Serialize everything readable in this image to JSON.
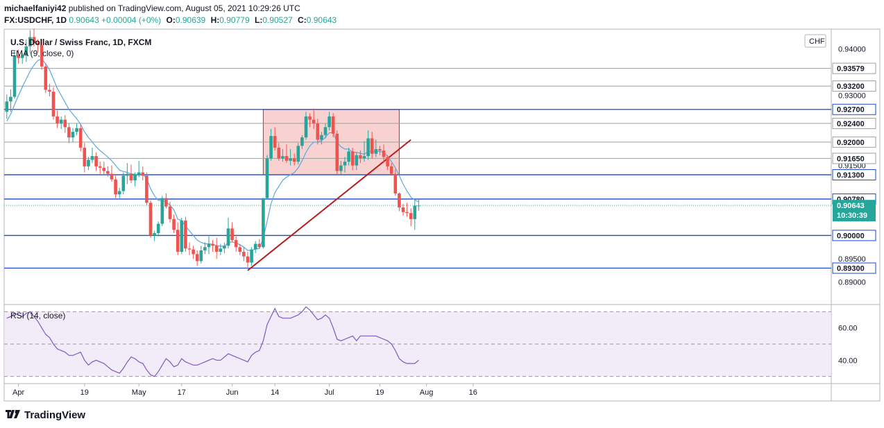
{
  "header": {
    "line1_user": "michaelfaniyi42",
    "line1_text": "published on TradingView.com, August 05, 2021 10:29:26 UTC",
    "symbol": "FX:USDCHF, 1D",
    "price": "0.90643",
    "change": "+0.00004 (+0%)",
    "o_label": "O:",
    "o_value": "0.90639",
    "h_label": "H:",
    "h_value": "0.90779",
    "l_label": "L:",
    "l_value": "0.90527",
    "c_label": "C:",
    "c_value": "0.90643"
  },
  "legend": {
    "title": "U.S. Dollar / Swiss Franc, 1D, FXCM",
    "ema": "EMA (9, close, 0)",
    "rsi": "RSI (14, close)",
    "currency": "CHF"
  },
  "footer": {
    "brand": "TradingView"
  },
  "colors": {
    "up": "#26a69a",
    "down": "#ef5350",
    "ema": "#5aa7e0",
    "level_blue": "#1848cc",
    "level_gray": "#9e9e9e",
    "trendline": "#b71c1c",
    "box_fill": "#ef9a9a",
    "box_stroke": "#c62828",
    "rsi_line": "#7e57c2",
    "rsi_band": "#ede7f6"
  },
  "chart_data": {
    "type": "candlestick",
    "price_axis": {
      "range": [
        0.8855,
        0.9442
      ],
      "ticks": [
        "0.94000",
        "0.93000",
        "0.91500",
        "0.90000",
        "0.89500",
        "0.89000"
      ],
      "tick_values": [
        0.94,
        0.93,
        0.915,
        0.9,
        0.895,
        0.89
      ],
      "labeled_levels": [
        {
          "label": "0.93579",
          "value": 0.93579,
          "style": "gray"
        },
        {
          "label": "0.93200",
          "value": 0.932,
          "style": "gray"
        },
        {
          "label": "0.92700",
          "value": 0.927,
          "style": "blue"
        },
        {
          "label": "0.92400",
          "value": 0.924,
          "style": "gray"
        },
        {
          "label": "0.92000",
          "value": 0.92,
          "style": "gray"
        },
        {
          "label": "0.91650",
          "value": 0.9165,
          "style": "gray"
        },
        {
          "label": "0.91300",
          "value": 0.913,
          "style": "blue"
        },
        {
          "label": "0.90780",
          "value": 0.9078,
          "style": "blue"
        },
        {
          "label": "0.90000",
          "value": 0.9,
          "style": "blue"
        },
        {
          "label": "0.89300",
          "value": 0.893,
          "style": "blue"
        }
      ],
      "current": {
        "label": "0.90643",
        "value": 0.90643,
        "countdown": "10:30:39"
      }
    },
    "time_axis": {
      "labels": [
        "Apr",
        "19",
        "May",
        "17",
        "Jun",
        "14",
        "Jul",
        "19",
        "Aug",
        "16"
      ],
      "label_index": [
        3,
        20,
        34,
        45,
        58,
        69,
        83,
        96,
        108,
        120
      ]
    },
    "candles_ohlc": [
      [
        0.9265,
        0.9302,
        0.925,
        0.9287
      ],
      [
        0.9287,
        0.9313,
        0.9265,
        0.9297
      ],
      [
        0.9297,
        0.9395,
        0.9293,
        0.9385
      ],
      [
        0.9385,
        0.9398,
        0.9368,
        0.938
      ],
      [
        0.938,
        0.939,
        0.9368,
        0.9385
      ],
      [
        0.9385,
        0.942,
        0.9372,
        0.9405
      ],
      [
        0.9405,
        0.944,
        0.939,
        0.9425
      ],
      [
        0.9425,
        0.9443,
        0.9405,
        0.9412
      ],
      [
        0.9412,
        0.942,
        0.9392,
        0.9408
      ],
      [
        0.9408,
        0.942,
        0.9355,
        0.9362
      ],
      [
        0.9362,
        0.9368,
        0.9305,
        0.9312
      ],
      [
        0.9312,
        0.9325,
        0.9298,
        0.9308
      ],
      [
        0.9308,
        0.9318,
        0.9248,
        0.9255
      ],
      [
        0.9255,
        0.9268,
        0.923,
        0.924
      ],
      [
        0.924,
        0.9255,
        0.9228,
        0.9248
      ],
      [
        0.9248,
        0.9258,
        0.922,
        0.9232
      ],
      [
        0.9232,
        0.924,
        0.9198,
        0.921
      ],
      [
        0.921,
        0.923,
        0.92,
        0.9222
      ],
      [
        0.9222,
        0.924,
        0.9215,
        0.923
      ],
      [
        0.923,
        0.9238,
        0.918,
        0.9188
      ],
      [
        0.9188,
        0.9198,
        0.9135,
        0.9148
      ],
      [
        0.9148,
        0.9168,
        0.914,
        0.9162
      ],
      [
        0.9162,
        0.9188,
        0.9155,
        0.917
      ],
      [
        0.917,
        0.9178,
        0.9138,
        0.9148
      ],
      [
        0.9148,
        0.9158,
        0.9132,
        0.9145
      ],
      [
        0.9145,
        0.9158,
        0.913,
        0.9138
      ],
      [
        0.9138,
        0.9148,
        0.9126,
        0.9132
      ],
      [
        0.9132,
        0.915,
        0.9115,
        0.912
      ],
      [
        0.912,
        0.9128,
        0.908,
        0.9088
      ],
      [
        0.9088,
        0.9102,
        0.908,
        0.9095
      ],
      [
        0.9095,
        0.9135,
        0.9088,
        0.9128
      ],
      [
        0.9128,
        0.9155,
        0.911,
        0.9132
      ],
      [
        0.9132,
        0.9152,
        0.9112,
        0.9118
      ],
      [
        0.9118,
        0.9135,
        0.9105,
        0.913
      ],
      [
        0.913,
        0.916,
        0.9125,
        0.9135
      ],
      [
        0.9135,
        0.9148,
        0.9118,
        0.9128
      ],
      [
        0.9128,
        0.9135,
        0.9065,
        0.907
      ],
      [
        0.907,
        0.9075,
        0.8995,
        0.9
      ],
      [
        0.9,
        0.901,
        0.8988,
        0.9005
      ],
      [
        0.9005,
        0.903,
        0.8998,
        0.9025
      ],
      [
        0.9025,
        0.9085,
        0.902,
        0.908
      ],
      [
        0.908,
        0.909,
        0.9058,
        0.9062
      ],
      [
        0.9062,
        0.9072,
        0.9028,
        0.9035
      ],
      [
        0.9035,
        0.9045,
        0.9005,
        0.9012
      ],
      [
        0.9012,
        0.9028,
        0.8958,
        0.8965
      ],
      [
        0.8965,
        0.9038,
        0.896,
        0.9032
      ],
      [
        0.9032,
        0.904,
        0.8965,
        0.8972
      ],
      [
        0.8972,
        0.8985,
        0.8958,
        0.897
      ],
      [
        0.897,
        0.8978,
        0.895,
        0.896
      ],
      [
        0.896,
        0.8968,
        0.8935,
        0.8945
      ],
      [
        0.8945,
        0.8978,
        0.894,
        0.8968
      ],
      [
        0.8968,
        0.8985,
        0.896,
        0.8975
      ],
      [
        0.8975,
        0.8998,
        0.896,
        0.8982
      ],
      [
        0.8982,
        0.899,
        0.8965,
        0.8978
      ],
      [
        0.8978,
        0.8995,
        0.895,
        0.8965
      ],
      [
        0.8965,
        0.8982,
        0.8958,
        0.8972
      ],
      [
        0.8972,
        0.8985,
        0.8962,
        0.8978
      ],
      [
        0.8978,
        0.9038,
        0.8972,
        0.9015
      ],
      [
        0.9015,
        0.9028,
        0.8985,
        0.899
      ],
      [
        0.899,
        0.8998,
        0.8965,
        0.8975
      ],
      [
        0.8975,
        0.8982,
        0.8958,
        0.8965
      ],
      [
        0.8965,
        0.8975,
        0.8945,
        0.8955
      ],
      [
        0.8955,
        0.8965,
        0.8932,
        0.8942
      ],
      [
        0.8942,
        0.8975,
        0.8935,
        0.897
      ],
      [
        0.897,
        0.8988,
        0.8962,
        0.8982
      ],
      [
        0.8982,
        0.8992,
        0.8972,
        0.8975
      ],
      [
        0.8975,
        0.908,
        0.8972,
        0.908
      ],
      [
        0.908,
        0.9172,
        0.9078,
        0.9165
      ],
      [
        0.9165,
        0.9228,
        0.916,
        0.9213
      ],
      [
        0.9213,
        0.9232,
        0.9182,
        0.9188
      ],
      [
        0.9188,
        0.9198,
        0.916,
        0.9165
      ],
      [
        0.9165,
        0.9185,
        0.9158,
        0.917
      ],
      [
        0.917,
        0.9195,
        0.9155,
        0.916
      ],
      [
        0.916,
        0.9185,
        0.915,
        0.9165
      ],
      [
        0.9165,
        0.9175,
        0.915,
        0.9158
      ],
      [
        0.9158,
        0.9198,
        0.9152,
        0.9192
      ],
      [
        0.9192,
        0.9215,
        0.9185,
        0.921
      ],
      [
        0.921,
        0.9265,
        0.9205,
        0.9255
      ],
      [
        0.9255,
        0.9262,
        0.9232,
        0.9248
      ],
      [
        0.9248,
        0.9272,
        0.9228,
        0.924
      ],
      [
        0.924,
        0.925,
        0.9195,
        0.9205
      ],
      [
        0.9205,
        0.9222,
        0.9195,
        0.9215
      ],
      [
        0.9215,
        0.924,
        0.9208,
        0.9232
      ],
      [
        0.9232,
        0.9265,
        0.9225,
        0.9255
      ],
      [
        0.9255,
        0.9262,
        0.921,
        0.9218
      ],
      [
        0.9218,
        0.9225,
        0.913,
        0.9138
      ],
      [
        0.9138,
        0.916,
        0.9128,
        0.915
      ],
      [
        0.915,
        0.9168,
        0.9135,
        0.9158
      ],
      [
        0.9158,
        0.9188,
        0.915,
        0.918
      ],
      [
        0.918,
        0.9188,
        0.914,
        0.915
      ],
      [
        0.915,
        0.9178,
        0.914,
        0.9172
      ],
      [
        0.9172,
        0.9182,
        0.9155,
        0.9165
      ],
      [
        0.9165,
        0.9202,
        0.9158,
        0.917
      ],
      [
        0.917,
        0.9225,
        0.9162,
        0.9208
      ],
      [
        0.9208,
        0.9222,
        0.9165,
        0.9175
      ],
      [
        0.9175,
        0.9205,
        0.9168,
        0.9185
      ],
      [
        0.9185,
        0.9192,
        0.9172,
        0.9182
      ],
      [
        0.9182,
        0.9195,
        0.9155,
        0.9168
      ],
      [
        0.9168,
        0.9172,
        0.914,
        0.9148
      ],
      [
        0.9148,
        0.9155,
        0.9128,
        0.9132
      ],
      [
        0.9132,
        0.9142,
        0.9085,
        0.909
      ],
      [
        0.909,
        0.9092,
        0.9052,
        0.906
      ],
      [
        0.906,
        0.9068,
        0.9042,
        0.905
      ],
      [
        0.905,
        0.907,
        0.904,
        0.9048
      ],
      [
        0.9048,
        0.9058,
        0.902,
        0.9035
      ],
      [
        0.9035,
        0.9075,
        0.9012,
        0.9064
      ],
      [
        0.9064,
        0.9078,
        0.9053,
        0.9064
      ]
    ],
    "ema": [
      0.9245,
      0.926,
      0.928,
      0.93,
      0.9318,
      0.9335,
      0.9352,
      0.9365,
      0.9375,
      0.9378,
      0.9368,
      0.9355,
      0.9335,
      0.9315,
      0.93,
      0.9285,
      0.927,
      0.926,
      0.925,
      0.9238,
      0.9222,
      0.921,
      0.92,
      0.919,
      0.9182,
      0.9175,
      0.9168,
      0.916,
      0.915,
      0.914,
      0.9137,
      0.9135,
      0.9132,
      0.9131,
      0.9131,
      0.9131,
      0.9122,
      0.91,
      0.9085,
      0.9075,
      0.9075,
      0.9072,
      0.9065,
      0.9055,
      0.9035,
      0.9032,
      0.902,
      0.901,
      0.9,
      0.899,
      0.8985,
      0.8982,
      0.8982,
      0.8981,
      0.8978,
      0.8977,
      0.8977,
      0.8985,
      0.8986,
      0.8984,
      0.898,
      0.8975,
      0.8968,
      0.8968,
      0.8971,
      0.8972,
      0.8995,
      0.903,
      0.9068,
      0.9092,
      0.9105,
      0.9118,
      0.9125,
      0.913,
      0.9135,
      0.9145,
      0.916,
      0.9178,
      0.9192,
      0.92,
      0.92,
      0.9203,
      0.921,
      0.922,
      0.922,
      0.92,
      0.919,
      0.9185,
      0.9185,
      0.9178,
      0.9178,
      0.9176,
      0.9174,
      0.918,
      0.918,
      0.918,
      0.918,
      0.9178,
      0.917,
      0.9158,
      0.9145,
      0.9128,
      0.911,
      0.9095,
      0.9082,
      0.9076,
      0.9072
    ],
    "rsi": {
      "axis_ticks": [
        "60.00",
        "40.00"
      ],
      "tick_values": [
        60,
        40
      ],
      "band": [
        30,
        70
      ],
      "midline": 50,
      "range": [
        26,
        74
      ],
      "values": [
        66,
        67,
        69,
        68,
        67,
        69,
        70,
        67,
        64,
        60,
        56,
        54,
        50,
        47,
        46,
        45,
        43,
        43,
        44,
        45,
        40,
        37,
        39,
        40,
        39,
        38,
        36,
        34,
        33,
        32,
        35,
        39,
        42,
        41,
        39,
        38,
        34,
        31,
        30,
        33,
        37,
        41,
        39,
        36,
        37,
        41,
        39,
        38,
        37,
        37,
        38,
        39,
        40,
        41,
        40,
        40,
        42,
        44,
        43,
        42,
        41,
        40,
        39,
        43,
        45,
        46,
        52,
        62,
        67,
        72,
        67,
        66,
        66,
        66,
        67,
        68,
        70,
        73,
        71,
        68,
        65,
        66,
        68,
        66,
        60,
        53,
        52,
        53,
        54,
        55,
        52,
        55,
        55,
        55,
        55,
        55,
        54,
        53,
        52,
        50,
        46,
        41,
        39,
        38,
        38,
        38,
        40
      ]
    },
    "rectangle": {
      "x_start_index": 66,
      "x_end_index": 101,
      "top": 0.927,
      "bottom": 0.913
    },
    "trendline": {
      "start_index": 62,
      "start_value": 0.8925,
      "end_index": 104,
      "end_value": 0.9205
    },
    "last_price_line": 0.90643
  }
}
